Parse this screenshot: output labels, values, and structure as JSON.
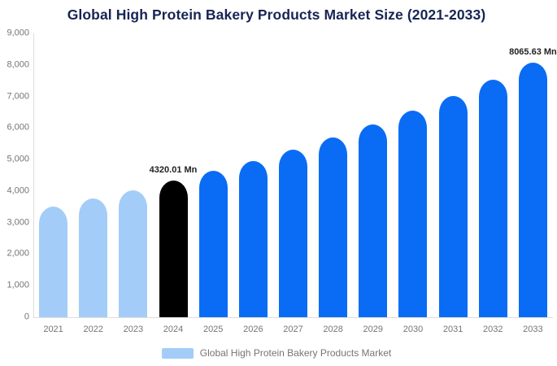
{
  "title": "Global High Protein Bakery Products Market Size (2021-2033)",
  "legend": {
    "label": "Global High Protein Bakery Products Market",
    "swatch_color": "#a3cdf8"
  },
  "colors": {
    "title_text": "#172554",
    "axis_text": "#757575",
    "axis_line": "#dddddd",
    "data_label_text": "#222222",
    "bar_light_blue": "#a3cdf8",
    "bar_black": "#000000",
    "bar_blue": "#0a6cf5"
  },
  "chart_data": {
    "type": "bar",
    "title": "Global High Protein Bakery Products Market Size (2021-2033)",
    "unit": "Mn",
    "xlabel": "",
    "ylabel": "",
    "ylim": [
      0,
      9000
    ],
    "ytick_interval": 1000,
    "ytick_labels": [
      "0",
      "1,000",
      "2,000",
      "3,000",
      "4,000",
      "5,000",
      "6,000",
      "7,000",
      "8,000",
      "9,000"
    ],
    "grid": false,
    "legend_position": "bottom",
    "categories": [
      "2021",
      "2022",
      "2023",
      "2024",
      "2025",
      "2026",
      "2027",
      "2028",
      "2029",
      "2030",
      "2031",
      "2032",
      "2033"
    ],
    "values": [
      3510,
      3760,
      4030,
      4320.01,
      4630,
      4960,
      5320,
      5700,
      6110,
      6550,
      7020,
      7520,
      8065.63
    ],
    "bar_colors": [
      "#a3cdf8",
      "#a3cdf8",
      "#a3cdf8",
      "#000000",
      "#0a6cf5",
      "#0a6cf5",
      "#0a6cf5",
      "#0a6cf5",
      "#0a6cf5",
      "#0a6cf5",
      "#0a6cf5",
      "#0a6cf5",
      "#0a6cf5"
    ],
    "data_labels": [
      {
        "category": "2024",
        "text": "4320.01 Mn"
      },
      {
        "category": "2033",
        "text": "8065.63 Mn"
      }
    ]
  }
}
